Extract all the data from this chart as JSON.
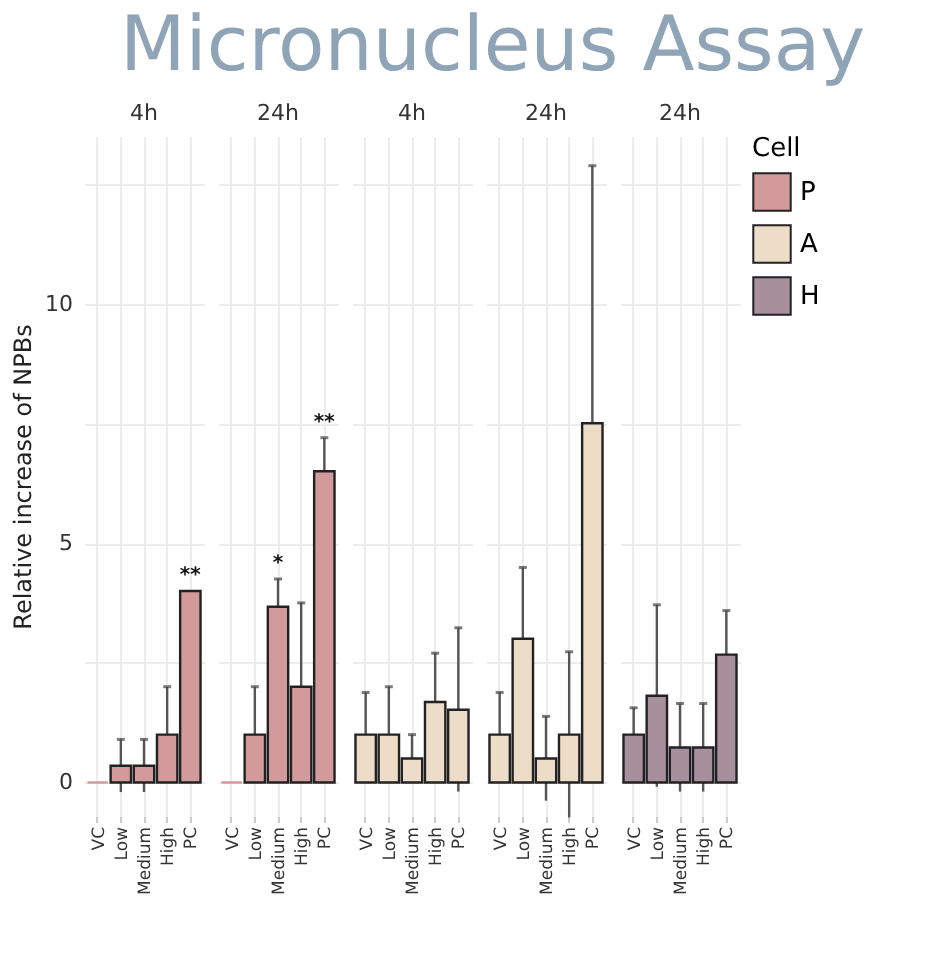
{
  "chart_data": [
    {
      "type": "other",
      "title": "Micronucleus Assay"
    },
    {
      "type": "bar",
      "title": "4h",
      "ylabel": "Relative increase of NPBs",
      "grid": true,
      "categories": [
        "VC",
        "Low",
        "Medium",
        "High",
        "PC"
      ],
      "series": [
        {
          "name": "P",
          "color": "#d39a9b",
          "values": [
            0,
            0.35,
            0.35,
            1.0,
            4.0
          ],
          "errors": [
            null,
            0.55,
            0.55,
            1.0,
            null
          ]
        }
      ],
      "ylim": [
        -0.7,
        13.5
      ],
      "yticks": [
        0,
        {
          "value": 2.5,
          "label": null
        },
        5,
        {
          "value": 7.5,
          "label": null
        },
        10,
        {
          "value": 12.5,
          "label": null
        }
      ],
      "annotations": [
        {
          "text": "**",
          "x": "PC",
          "y": 4.0
        }
      ]
    },
    {
      "type": "bar",
      "title": "24h",
      "grid": true,
      "tick_labels": "x",
      "categories": [
        "VC",
        "Low",
        "Medium",
        "High",
        "PC"
      ],
      "series": [
        {
          "name": "P",
          "color": "#d39a9b",
          "values": [
            0,
            1.0,
            3.67,
            2.0,
            6.5
          ],
          "errors": [
            null,
            1.0,
            0.58,
            1.75,
            0.7
          ]
        }
      ],
      "ylim": [
        -0.7,
        13.5
      ],
      "yticks": [
        0,
        {
          "value": 2.5,
          "label": null
        },
        5,
        {
          "value": 7.5,
          "label": null
        },
        10,
        {
          "value": 12.5,
          "label": null
        }
      ],
      "annotations": [
        {
          "text": "*",
          "x": "Medium",
          "y": 3.67
        },
        {
          "text": "**",
          "x": "PC",
          "y": 6.5
        }
      ]
    },
    {
      "type": "bar",
      "title": "4h",
      "grid": true,
      "tick_labels": "x",
      "categories": [
        "VC",
        "Low",
        "Medium",
        "High",
        "PC"
      ],
      "series": [
        {
          "name": "A",
          "color": "#ecdcc8",
          "values": [
            1.0,
            1.0,
            0.5,
            1.68,
            1.52
          ],
          "errors": [
            0.88,
            1.0,
            0.5,
            1.02,
            1.71
          ]
        }
      ],
      "ylim": [
        -0.7,
        13.5
      ],
      "yticks": [
        0,
        {
          "value": 2.5,
          "label": null
        },
        5,
        {
          "value": 7.5,
          "label": null
        },
        10,
        {
          "value": 12.5,
          "label": null
        }
      ]
    },
    {
      "type": "bar",
      "title": "24h",
      "grid": true,
      "tick_labels": "x",
      "categories": [
        "VC",
        "Low",
        "Medium",
        "High",
        "PC"
      ],
      "series": [
        {
          "name": "A",
          "color": "#ecdcc8",
          "values": [
            1.0,
            3.0,
            0.5,
            1.0,
            7.5
          ],
          "errors": [
            0.88,
            1.49,
            0.88,
            1.73,
            5.38
          ]
        }
      ],
      "ylim": [
        -0.7,
        13.5
      ],
      "yticks": [
        0,
        {
          "value": 2.5,
          "label": null
        },
        5,
        {
          "value": 7.5,
          "label": null
        },
        10,
        {
          "value": 12.5,
          "label": null
        }
      ]
    },
    {
      "type": "bar",
      "title": "24h",
      "legend_title": "Cell",
      "legend": "right",
      "grid": true,
      "tick_labels": "x",
      "categories": [
        "VC",
        "Low",
        "Medium",
        "High",
        "PC"
      ],
      "series": [
        {
          "name": "H",
          "color": "#a88f9c",
          "values": [
            1.0,
            1.81,
            0.73,
            0.73,
            2.67
          ],
          "errors": [
            0.56,
            1.9,
            0.92,
            0.92,
            0.92
          ]
        }
      ],
      "ylim": [
        -0.7,
        13.5
      ],
      "yticks": [
        0,
        {
          "value": 2.5,
          "label": null
        },
        5,
        {
          "value": 7.5,
          "label": null
        },
        10,
        {
          "value": 12.5,
          "label": null
        }
      ]
    }
  ]
}
